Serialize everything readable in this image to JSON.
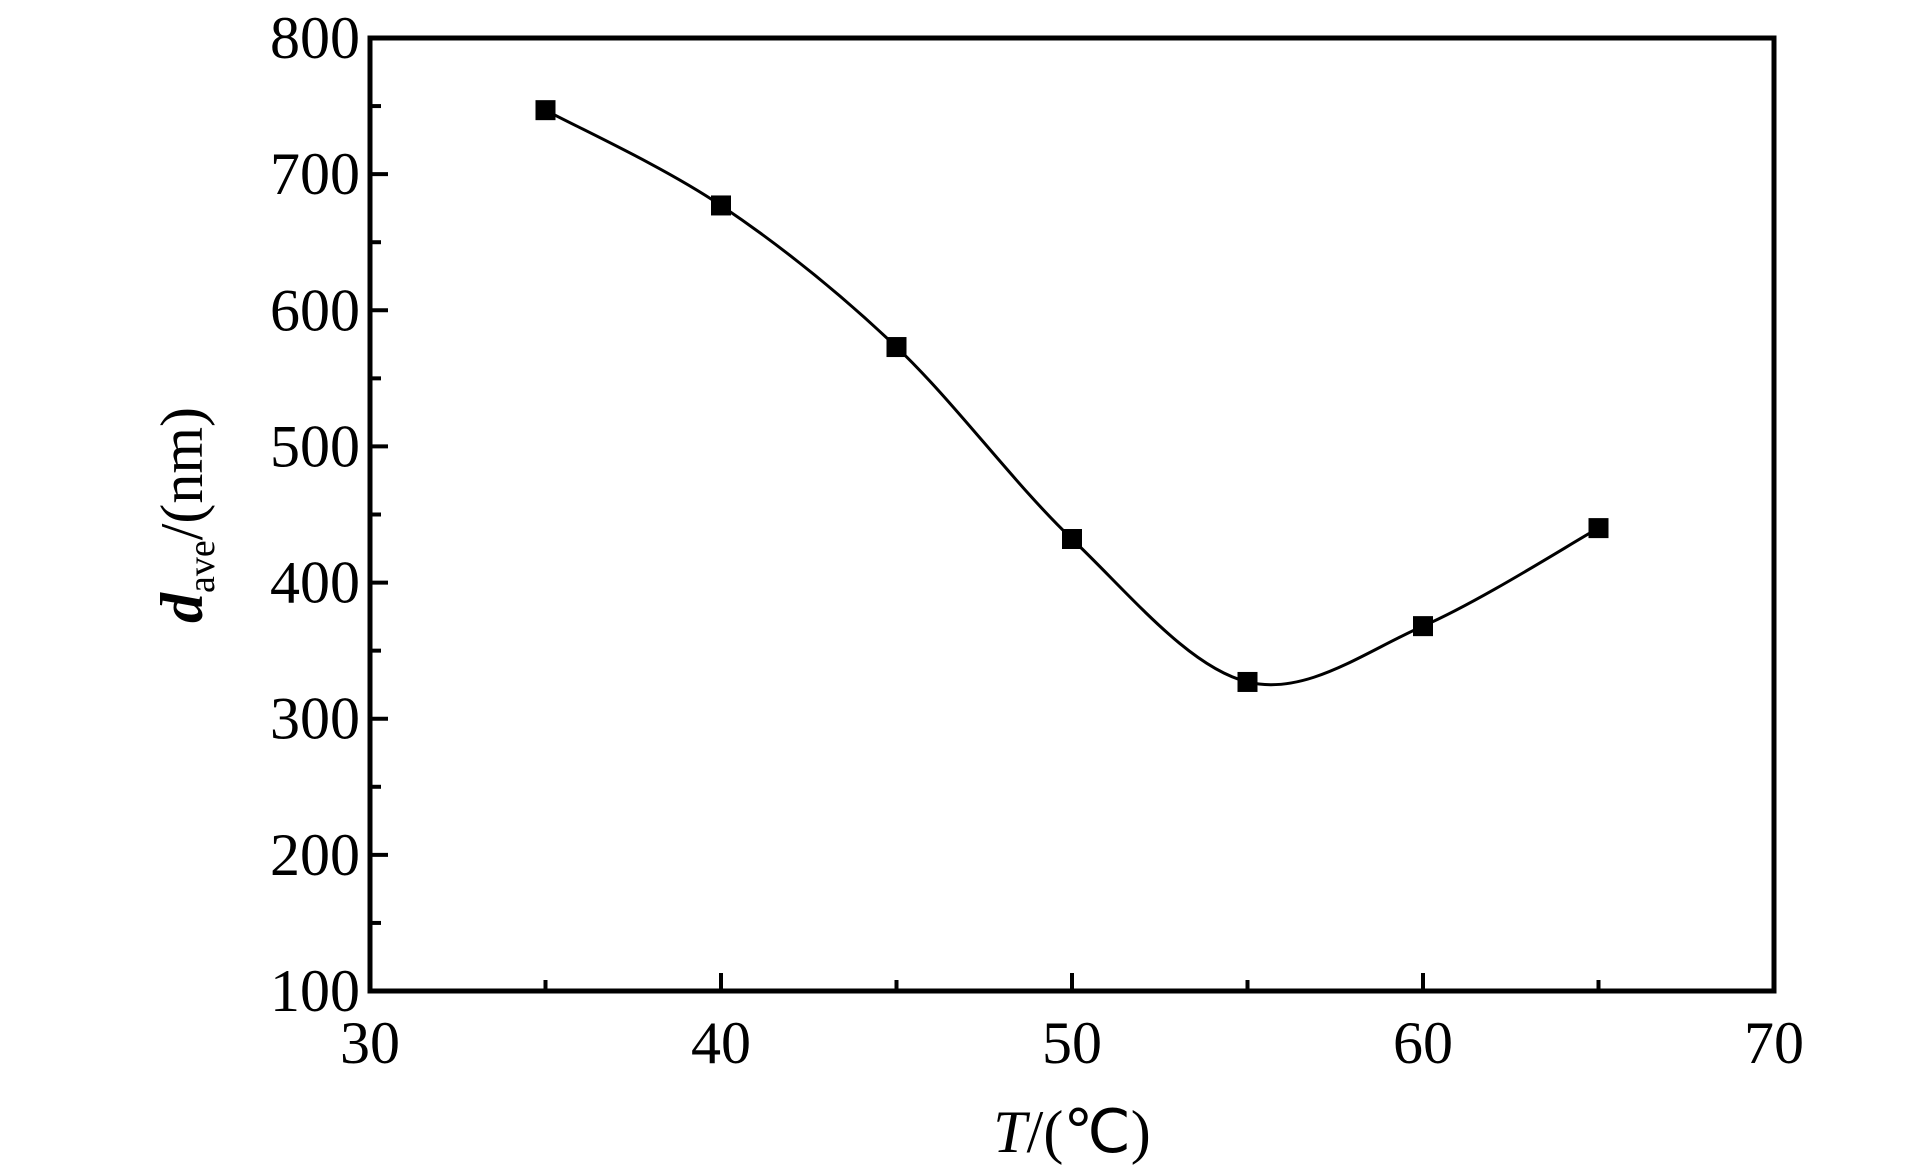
{
  "chart_data": {
    "type": "line",
    "x": [
      35,
      40,
      45,
      50,
      55,
      60,
      65
    ],
    "series": [
      {
        "values": [
          747,
          677,
          573,
          432,
          327,
          368,
          440
        ]
      }
    ],
    "xlabel": {
      "main": "T",
      "rest": "/(℃)"
    },
    "ylabel": {
      "main": "d",
      "sub": "ave",
      "rest": "/(nm)"
    },
    "xlim": [
      30,
      70
    ],
    "ylim": [
      100,
      800
    ],
    "xticks": [
      30,
      40,
      50,
      60,
      70
    ],
    "yticks": [
      100,
      200,
      300,
      400,
      500,
      600,
      700,
      800
    ],
    "x_minor_step": 5,
    "y_minor_step": 50,
    "grid": false,
    "marker": "square",
    "line": "smooth",
    "colors": {
      "line": "#000000",
      "marker": "#000000",
      "axes": "#000000"
    }
  }
}
